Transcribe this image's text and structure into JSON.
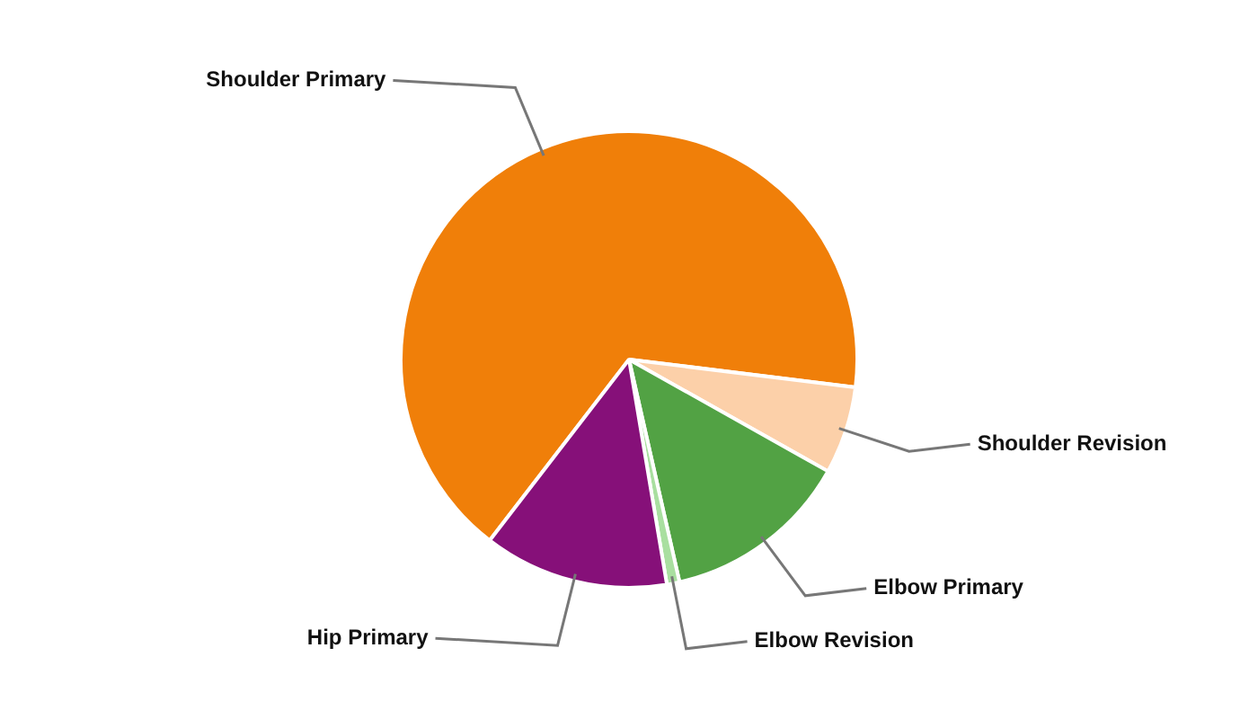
{
  "chart_data": {
    "type": "pie",
    "categories": [
      "Shoulder Primary",
      "Shoulder Revision",
      "Elbow Primary",
      "Elbow Revision",
      "Hip Primary"
    ],
    "values": [
      66.5,
      6.2,
      13.3,
      0.9,
      13.1
    ],
    "colors": [
      "#f07f09",
      "#fcd0a9",
      "#52a244",
      "#a9dfa0",
      "#861079"
    ],
    "legend": false
  }
}
